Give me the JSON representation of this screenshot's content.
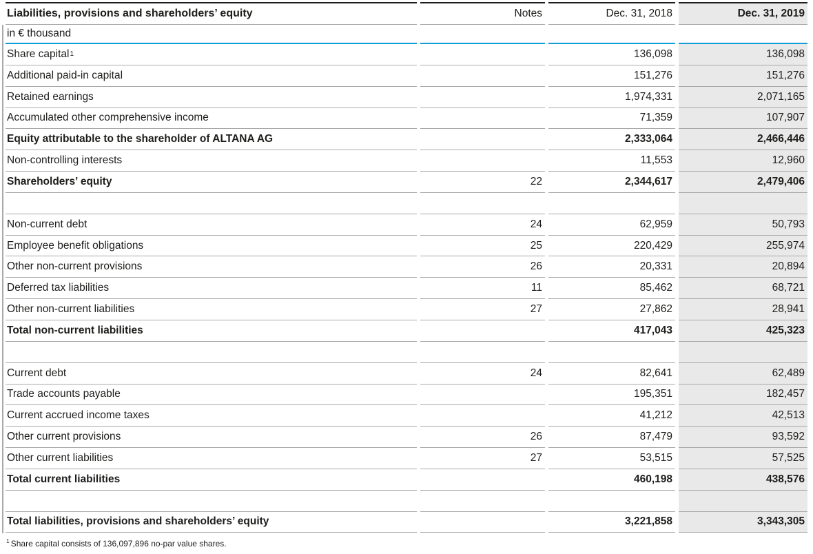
{
  "table": {
    "title": "Liabilities, provisions and shareholders’ equity",
    "unit": "in € thousand",
    "columns": [
      "Notes",
      "Dec. 31, 2018",
      "Dec. 31, 2019"
    ],
    "rows": [
      {
        "label": "Share capital",
        "sup": "1",
        "notes": "",
        "y2018": "136,098",
        "y2019": "136,098",
        "bold": false
      },
      {
        "label": "Additional paid-in capital",
        "notes": "",
        "y2018": "151,276",
        "y2019": "151,276",
        "bold": false
      },
      {
        "label": "Retained earnings",
        "notes": "",
        "y2018": "1,974,331",
        "y2019": "2,071,165",
        "bold": false
      },
      {
        "label": "Accumulated other comprehensive income",
        "notes": "",
        "y2018": "71,359",
        "y2019": "107,907",
        "bold": false
      },
      {
        "label": "Equity attributable to the shareholder of ALTANA AG",
        "notes": "",
        "y2018": "2,333,064",
        "y2019": "2,466,446",
        "bold": true
      },
      {
        "label": "Non-controlling interests",
        "notes": "",
        "y2018": "11,553",
        "y2019": "12,960",
        "bold": false
      },
      {
        "label": "Shareholders’ equity",
        "notes": "22",
        "y2018": "2,344,617",
        "y2019": "2,479,406",
        "bold": true
      },
      {
        "spacer": true
      },
      {
        "label": "Non-current debt",
        "notes": "24",
        "y2018": "62,959",
        "y2019": "50,793",
        "bold": false
      },
      {
        "label": "Employee benefit obligations",
        "notes": "25",
        "y2018": "220,429",
        "y2019": "255,974",
        "bold": false
      },
      {
        "label": "Other non-current provisions",
        "notes": "26",
        "y2018": "20,331",
        "y2019": "20,894",
        "bold": false
      },
      {
        "label": "Deferred tax liabilities",
        "notes": "11",
        "y2018": "85,462",
        "y2019": "68,721",
        "bold": false
      },
      {
        "label": "Other non-current liabilities",
        "notes": "27",
        "y2018": "27,862",
        "y2019": "28,941",
        "bold": false
      },
      {
        "label": "Total non-current liabilities",
        "notes": "",
        "y2018": "417,043",
        "y2019": "425,323",
        "bold": true
      },
      {
        "spacer": true
      },
      {
        "label": "Current debt",
        "notes": "24",
        "y2018": "82,641",
        "y2019": "62,489",
        "bold": false
      },
      {
        "label": "Trade accounts payable",
        "notes": "",
        "y2018": "195,351",
        "y2019": "182,457",
        "bold": false
      },
      {
        "label": "Current accrued income taxes",
        "notes": "",
        "y2018": "41,212",
        "y2019": "42,513",
        "bold": false
      },
      {
        "label": "Other current provisions",
        "notes": "26",
        "y2018": "87,479",
        "y2019": "93,592",
        "bold": false
      },
      {
        "label": "Other current liabilities",
        "notes": "27",
        "y2018": "53,515",
        "y2019": "57,525",
        "bold": false
      },
      {
        "label": "Total current liabilities",
        "notes": "",
        "y2018": "460,198",
        "y2019": "438,576",
        "bold": true
      },
      {
        "spacer": true
      },
      {
        "label": "Total liabilities, provisions and shareholders’ equity",
        "notes": "",
        "y2018": "3,221,858",
        "y2019": "3,343,305",
        "bold": true
      }
    ],
    "footnote_sup": "1",
    "footnote_text": "Share capital consists of 136,097,896 no-par value shares."
  },
  "colors": {
    "accent_blue": "#0f9dd7",
    "shaded_column": "#e9e9e9",
    "row_border": "#a8a8a8",
    "dark": "#1d1d1b"
  }
}
